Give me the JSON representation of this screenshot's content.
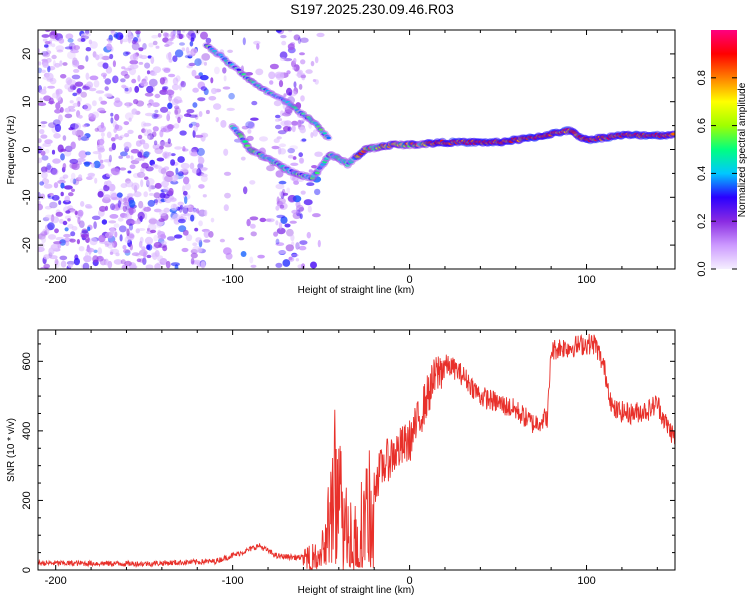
{
  "title": "S197.2025.230.09.46.R03",
  "chart_data": [
    {
      "type": "heatmap",
      "name": "spectrogram",
      "xlabel": "Height of straight line (km)",
      "ylabel": "Frequency (Hz)",
      "xlim": [
        -210,
        150
      ],
      "ylim": [
        -25,
        25
      ],
      "xticks": [
        -200,
        -100,
        0,
        100
      ],
      "yticks": [
        -20,
        -10,
        0,
        10,
        20
      ],
      "colorbar": {
        "label": "Normalized spectral amplitude",
        "range": [
          0,
          1
        ],
        "ticks": [
          0.0,
          0.2,
          0.4,
          0.6,
          0.8
        ],
        "tick_labels": [
          "0.0",
          "0.2",
          "0.4",
          "0.6",
          "0.8"
        ],
        "colormap": [
          "#f5efff",
          "#cc99ff",
          "#8a2be2",
          "#2a00ff",
          "#00c8ff",
          "#00ff80",
          "#a0ff00",
          "#ffff00",
          "#ff8000",
          "#ff0000",
          "#ff0080"
        ]
      },
      "ridge": [
        {
          "x": -100,
          "y": 5
        },
        {
          "x": -90,
          "y": 0
        },
        {
          "x": -80,
          "y": -2
        },
        {
          "x": -65,
          "y": -5
        },
        {
          "x": -55,
          "y": -6
        },
        {
          "x": -45,
          "y": -1
        },
        {
          "x": -35,
          "y": -3
        },
        {
          "x": -25,
          "y": 0
        },
        {
          "x": -10,
          "y": 1
        },
        {
          "x": 0,
          "y": 1
        },
        {
          "x": 20,
          "y": 1.5
        },
        {
          "x": 50,
          "y": 1.5
        },
        {
          "x": 70,
          "y": 2.5
        },
        {
          "x": 90,
          "y": 4
        },
        {
          "x": 100,
          "y": 2
        },
        {
          "x": 120,
          "y": 3
        },
        {
          "x": 150,
          "y": 3
        }
      ],
      "upper_branch": [
        {
          "x": -115,
          "y": 22
        },
        {
          "x": -95,
          "y": 16
        },
        {
          "x": -85,
          "y": 13
        },
        {
          "x": -70,
          "y": 10
        },
        {
          "x": -55,
          "y": 6
        },
        {
          "x": -45,
          "y": 2
        }
      ]
    },
    {
      "type": "line",
      "name": "snr",
      "xlabel": "Height of straight line (km)",
      "ylabel": "SNR (10 * v/v)",
      "xlim": [
        -210,
        150
      ],
      "ylim": [
        0,
        690
      ],
      "xticks": [
        -200,
        -100,
        0,
        100
      ],
      "yticks": [
        0,
        200,
        400,
        600
      ],
      "color": "#e8302a",
      "series": [
        {
          "name": "SNR",
          "x": [
            -210,
            -150,
            -110,
            -95,
            -85,
            -75,
            -60,
            -50,
            -45,
            -42,
            -40,
            -38,
            -35,
            -32,
            -28,
            -25,
            -20,
            -15,
            -10,
            -5,
            0,
            5,
            10,
            15,
            20,
            25,
            30,
            40,
            50,
            60,
            70,
            78,
            80,
            85,
            90,
            100,
            105,
            110,
            115,
            125,
            135,
            140,
            145,
            150
          ],
          "y": [
            20,
            18,
            25,
            50,
            70,
            40,
            35,
            60,
            180,
            300,
            260,
            200,
            150,
            120,
            150,
            200,
            250,
            300,
            330,
            350,
            370,
            430,
            500,
            560,
            590,
            580,
            560,
            500,
            480,
            460,
            420,
            440,
            630,
            640,
            640,
            650,
            650,
            580,
            460,
            450,
            460,
            480,
            420,
            380
          ]
        }
      ]
    }
  ]
}
